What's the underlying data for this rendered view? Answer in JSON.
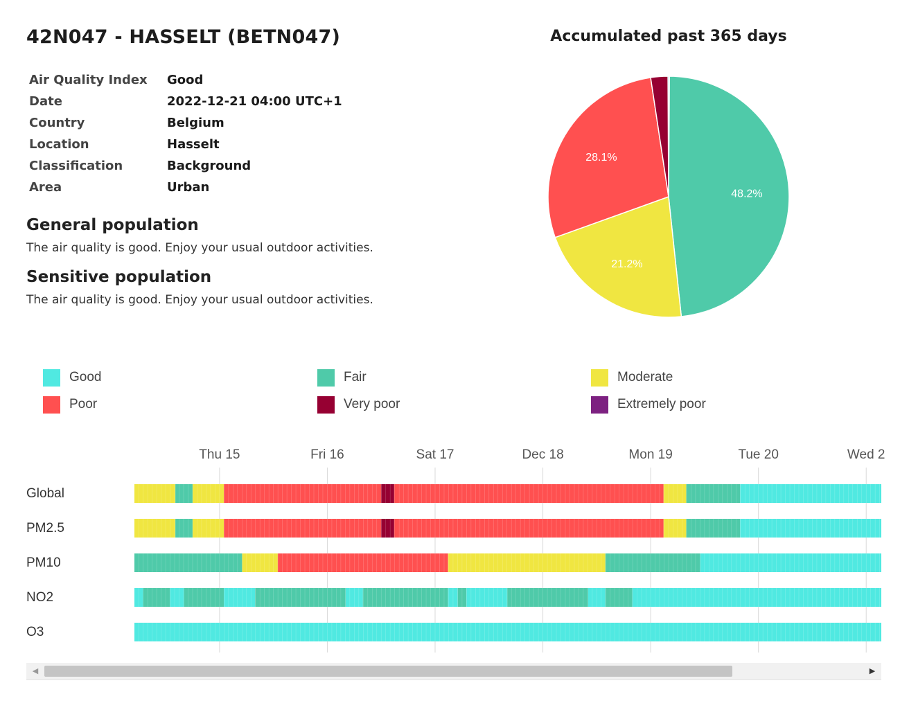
{
  "station": {
    "title": "42N047 - HASSELT (BETN047)",
    "info": [
      {
        "label": "Air Quality Index",
        "value": "Good"
      },
      {
        "label": "Date",
        "value": "2022-12-21 04:00 UTC+1"
      },
      {
        "label": "Country",
        "value": "Belgium"
      },
      {
        "label": "Location",
        "value": "Hasselt"
      },
      {
        "label": "Classification",
        "value": "Background"
      },
      {
        "label": "Area",
        "value": "Urban"
      }
    ]
  },
  "advice": {
    "general_heading": "General population",
    "general_text": "The air quality is good. Enjoy your usual outdoor activities.",
    "sensitive_heading": "Sensitive population",
    "sensitive_text": "The air quality is good. Enjoy your usual outdoor activities."
  },
  "legend": {
    "items": [
      {
        "label": "Good",
        "color": "#50E9E1"
      },
      {
        "label": "Fair",
        "color": "#4FCAA9"
      },
      {
        "label": "Moderate",
        "color": "#F0E641"
      },
      {
        "label": "Poor",
        "color": "#FF5050"
      },
      {
        "label": "Very poor",
        "color": "#960032"
      },
      {
        "label": "Extremely poor",
        "color": "#7D2181"
      }
    ]
  },
  "chart_data": [
    {
      "type": "pie",
      "title": "Accumulated past 365 days",
      "slices": [
        {
          "category": "Good",
          "value": 0.2,
          "color": "#50E9E1",
          "label": ""
        },
        {
          "category": "Fair",
          "value": 48.2,
          "color": "#4FCAA9",
          "label": "48.2%"
        },
        {
          "category": "Moderate",
          "value": 21.2,
          "color": "#F0E641",
          "label": "21.2%"
        },
        {
          "category": "Poor",
          "value": 28.1,
          "color": "#FF5050",
          "label": "28.1%"
        },
        {
          "category": "Very poor",
          "value": 2.3,
          "color": "#960032",
          "label": ""
        }
      ]
    },
    {
      "type": "heatmap",
      "x_ticks": [
        "Thu 15",
        "Fri 16",
        "Sat 17",
        "Dec 18",
        "Mon 19",
        "Tue 20",
        "Wed 2"
      ],
      "x_start_day": 14.21,
      "x_end_day": 21.14,
      "rows": [
        {
          "name": "Global",
          "segments": [
            {
              "from": 14.21,
              "to": 14.59,
              "category": "Moderate"
            },
            {
              "from": 14.59,
              "to": 14.75,
              "category": "Fair"
            },
            {
              "from": 14.75,
              "to": 15.04,
              "category": "Moderate"
            },
            {
              "from": 15.04,
              "to": 16.5,
              "category": "Poor"
            },
            {
              "from": 16.5,
              "to": 16.62,
              "category": "Very poor"
            },
            {
              "from": 16.62,
              "to": 19.12,
              "category": "Poor"
            },
            {
              "from": 19.12,
              "to": 19.33,
              "category": "Moderate"
            },
            {
              "from": 19.33,
              "to": 19.83,
              "category": "Fair"
            },
            {
              "from": 19.83,
              "to": 21.14,
              "category": "Good"
            }
          ]
        },
        {
          "name": "PM2.5",
          "segments": [
            {
              "from": 14.21,
              "to": 14.59,
              "category": "Moderate"
            },
            {
              "from": 14.59,
              "to": 14.75,
              "category": "Fair"
            },
            {
              "from": 14.75,
              "to": 15.04,
              "category": "Moderate"
            },
            {
              "from": 15.04,
              "to": 16.5,
              "category": "Poor"
            },
            {
              "from": 16.5,
              "to": 16.62,
              "category": "Very poor"
            },
            {
              "from": 16.62,
              "to": 19.12,
              "category": "Poor"
            },
            {
              "from": 19.12,
              "to": 19.33,
              "category": "Moderate"
            },
            {
              "from": 19.33,
              "to": 19.83,
              "category": "Fair"
            },
            {
              "from": 19.83,
              "to": 21.14,
              "category": "Good"
            }
          ]
        },
        {
          "name": "PM10",
          "segments": [
            {
              "from": 14.21,
              "to": 15.21,
              "category": "Fair"
            },
            {
              "from": 15.21,
              "to": 15.54,
              "category": "Moderate"
            },
            {
              "from": 15.54,
              "to": 17.12,
              "category": "Poor"
            },
            {
              "from": 17.12,
              "to": 18.58,
              "category": "Moderate"
            },
            {
              "from": 18.58,
              "to": 19.46,
              "category": "Fair"
            },
            {
              "from": 19.46,
              "to": 21.14,
              "category": "Good"
            }
          ]
        },
        {
          "name": "NO2",
          "segments": [
            {
              "from": 14.21,
              "to": 14.29,
              "category": "Good"
            },
            {
              "from": 14.29,
              "to": 14.54,
              "category": "Fair"
            },
            {
              "from": 14.54,
              "to": 14.67,
              "category": "Good"
            },
            {
              "from": 14.67,
              "to": 15.04,
              "category": "Fair"
            },
            {
              "from": 15.04,
              "to": 15.33,
              "category": "Good"
            },
            {
              "from": 15.33,
              "to": 16.17,
              "category": "Fair"
            },
            {
              "from": 16.17,
              "to": 16.33,
              "category": "Good"
            },
            {
              "from": 16.33,
              "to": 17.12,
              "category": "Fair"
            },
            {
              "from": 17.12,
              "to": 17.21,
              "category": "Good"
            },
            {
              "from": 17.21,
              "to": 17.29,
              "category": "Fair"
            },
            {
              "from": 17.29,
              "to": 17.67,
              "category": "Good"
            },
            {
              "from": 17.67,
              "to": 18.42,
              "category": "Fair"
            },
            {
              "from": 18.42,
              "to": 18.58,
              "category": "Good"
            },
            {
              "from": 18.58,
              "to": 18.83,
              "category": "Fair"
            },
            {
              "from": 18.83,
              "to": 21.14,
              "category": "Good"
            }
          ]
        },
        {
          "name": "O3",
          "segments": [
            {
              "from": 14.21,
              "to": 21.14,
              "category": "Good"
            }
          ]
        }
      ]
    }
  ]
}
